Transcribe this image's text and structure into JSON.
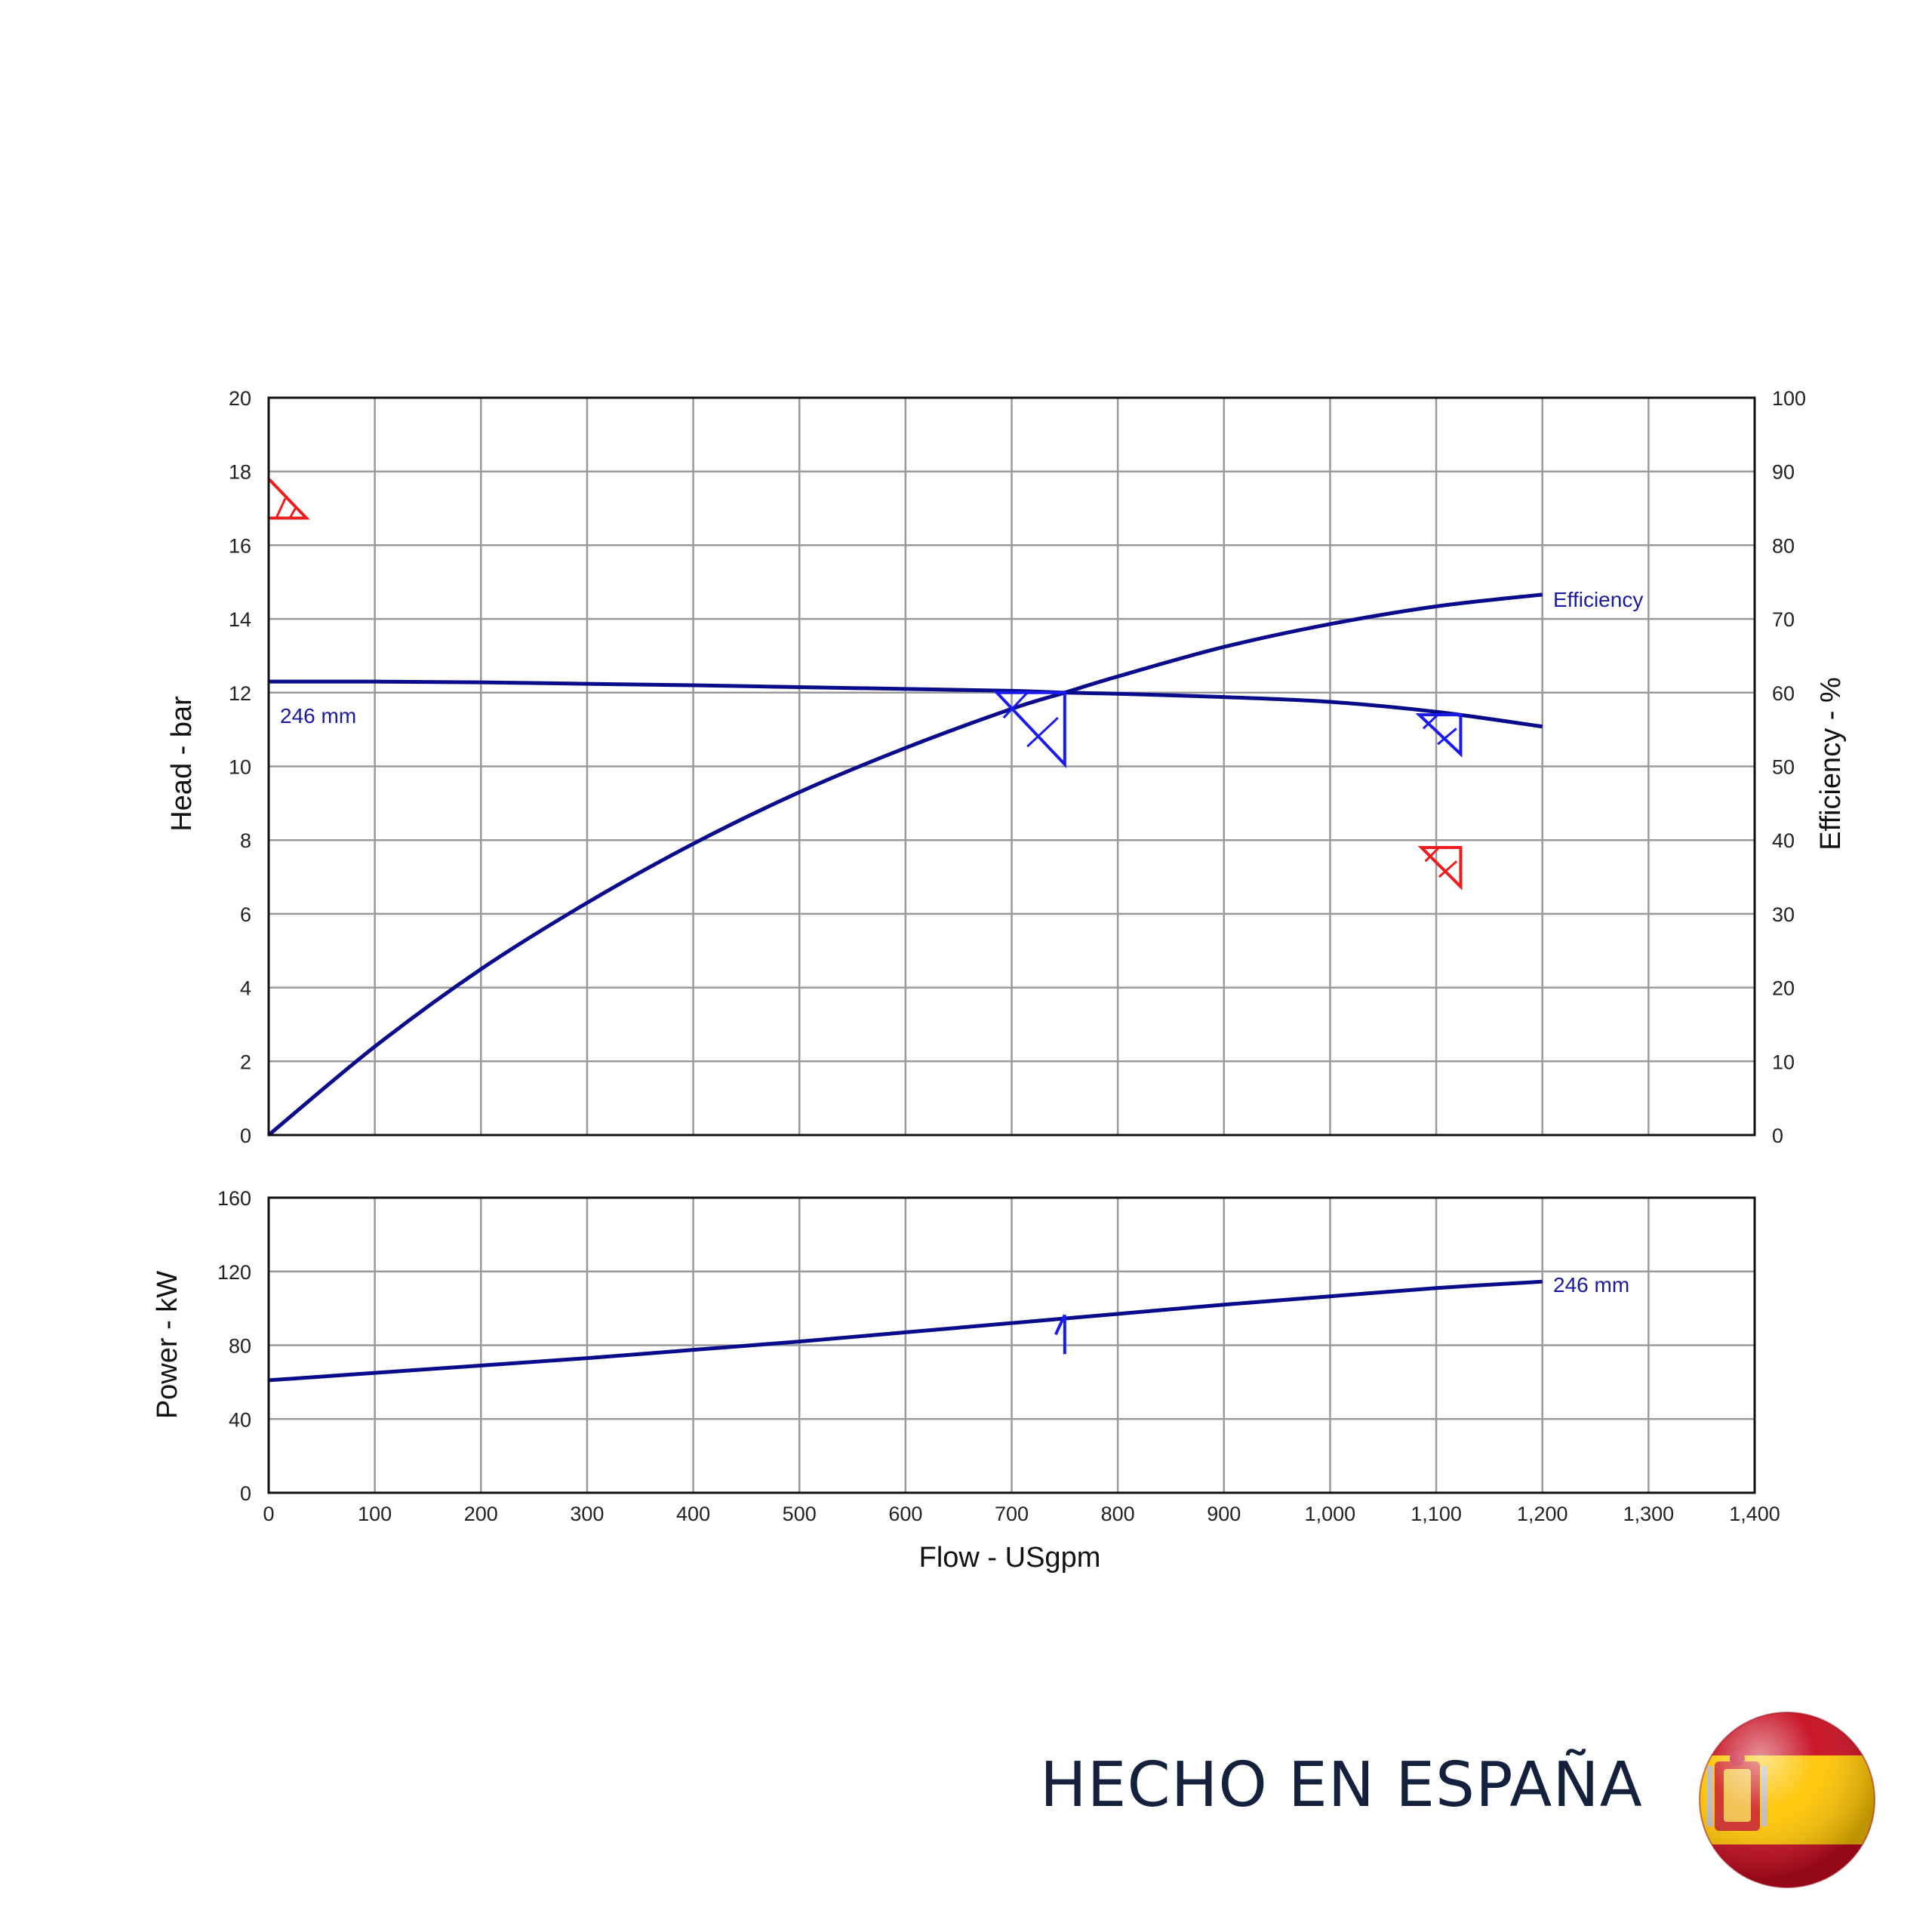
{
  "colors": {
    "curve": "#0a0a8c",
    "marker_blue": "#1a1af0",
    "marker_red": "#ee1c1c",
    "grid": "#9a9a9a",
    "frame": "#111111",
    "label": "#1a1aa0",
    "footer_text": "#14213d"
  },
  "footer": {
    "text": "HECHO EN ESPAÑA",
    "flag_icon": "spain-flag-sphere-icon"
  },
  "chart_data": [
    {
      "type": "line",
      "panel": "head-efficiency",
      "xlabel": "Flow - USgpm",
      "xlim": [
        0,
        1400
      ],
      "xticks": [
        0,
        100,
        200,
        300,
        400,
        500,
        600,
        700,
        800,
        900,
        1000,
        1100,
        1200,
        1300,
        1400
      ],
      "xtick_labels": [
        "0",
        "100",
        "200",
        "300",
        "400",
        "500",
        "600",
        "700",
        "800",
        "900",
        "1,000",
        "1,100",
        "1,200",
        "1,300",
        "1,400"
      ],
      "ylabel": "Head - bar",
      "ylim": [
        0,
        20
      ],
      "yticks": [
        0,
        2,
        4,
        6,
        8,
        10,
        12,
        14,
        16,
        18,
        20
      ],
      "y2label": "Efficiency - %",
      "y2lim": [
        0,
        100
      ],
      "y2ticks": [
        0,
        10,
        20,
        30,
        40,
        50,
        60,
        70,
        80,
        90,
        100
      ],
      "grid": true,
      "series": [
        {
          "name": "246 mm",
          "axis": "left",
          "x": [
            0,
            100,
            200,
            300,
            400,
            500,
            600,
            700,
            750,
            800,
            900,
            1000,
            1100,
            1200
          ],
          "y": [
            12.3,
            12.3,
            12.28,
            12.24,
            12.2,
            12.15,
            12.1,
            12.05,
            12.0,
            11.97,
            11.88,
            11.75,
            11.48,
            11.08
          ]
        },
        {
          "name": "Efficiency",
          "axis": "right",
          "x": [
            0,
            100,
            200,
            300,
            400,
            500,
            600,
            700,
            750,
            800,
            900,
            1000,
            1100,
            1200
          ],
          "y": [
            0,
            12,
            22.5,
            31.5,
            39.5,
            46.5,
            52.5,
            57.8,
            60.0,
            62.2,
            66.2,
            69.3,
            71.7,
            73.3
          ]
        }
      ],
      "markers": [
        {
          "color": "red",
          "axis": "left",
          "x": 0,
          "y": 17.8
        },
        {
          "color": "blue",
          "axis": "left",
          "x": 750,
          "y": 12.0
        },
        {
          "color": "blue",
          "axis": "left",
          "x": 1123,
          "y": 11.4
        },
        {
          "color": "red",
          "axis": "left",
          "x": 1123,
          "y": 7.8
        }
      ]
    },
    {
      "type": "line",
      "panel": "power",
      "xlabel": "Flow - USgpm",
      "xlim": [
        0,
        1400
      ],
      "ylabel": "Power - kW",
      "ylim": [
        0,
        160
      ],
      "yticks": [
        0,
        40,
        80,
        120,
        160
      ],
      "grid": true,
      "series": [
        {
          "name": "246 mm",
          "x": [
            0,
            100,
            200,
            300,
            400,
            500,
            600,
            700,
            800,
            900,
            1000,
            1100,
            1200
          ],
          "y": [
            61,
            65,
            69,
            73,
            77.5,
            82,
            87,
            92,
            97,
            102,
            106.5,
            111,
            114.5
          ]
        }
      ],
      "markers": [
        {
          "color": "blue",
          "x": 750,
          "y": 94
        }
      ]
    }
  ]
}
